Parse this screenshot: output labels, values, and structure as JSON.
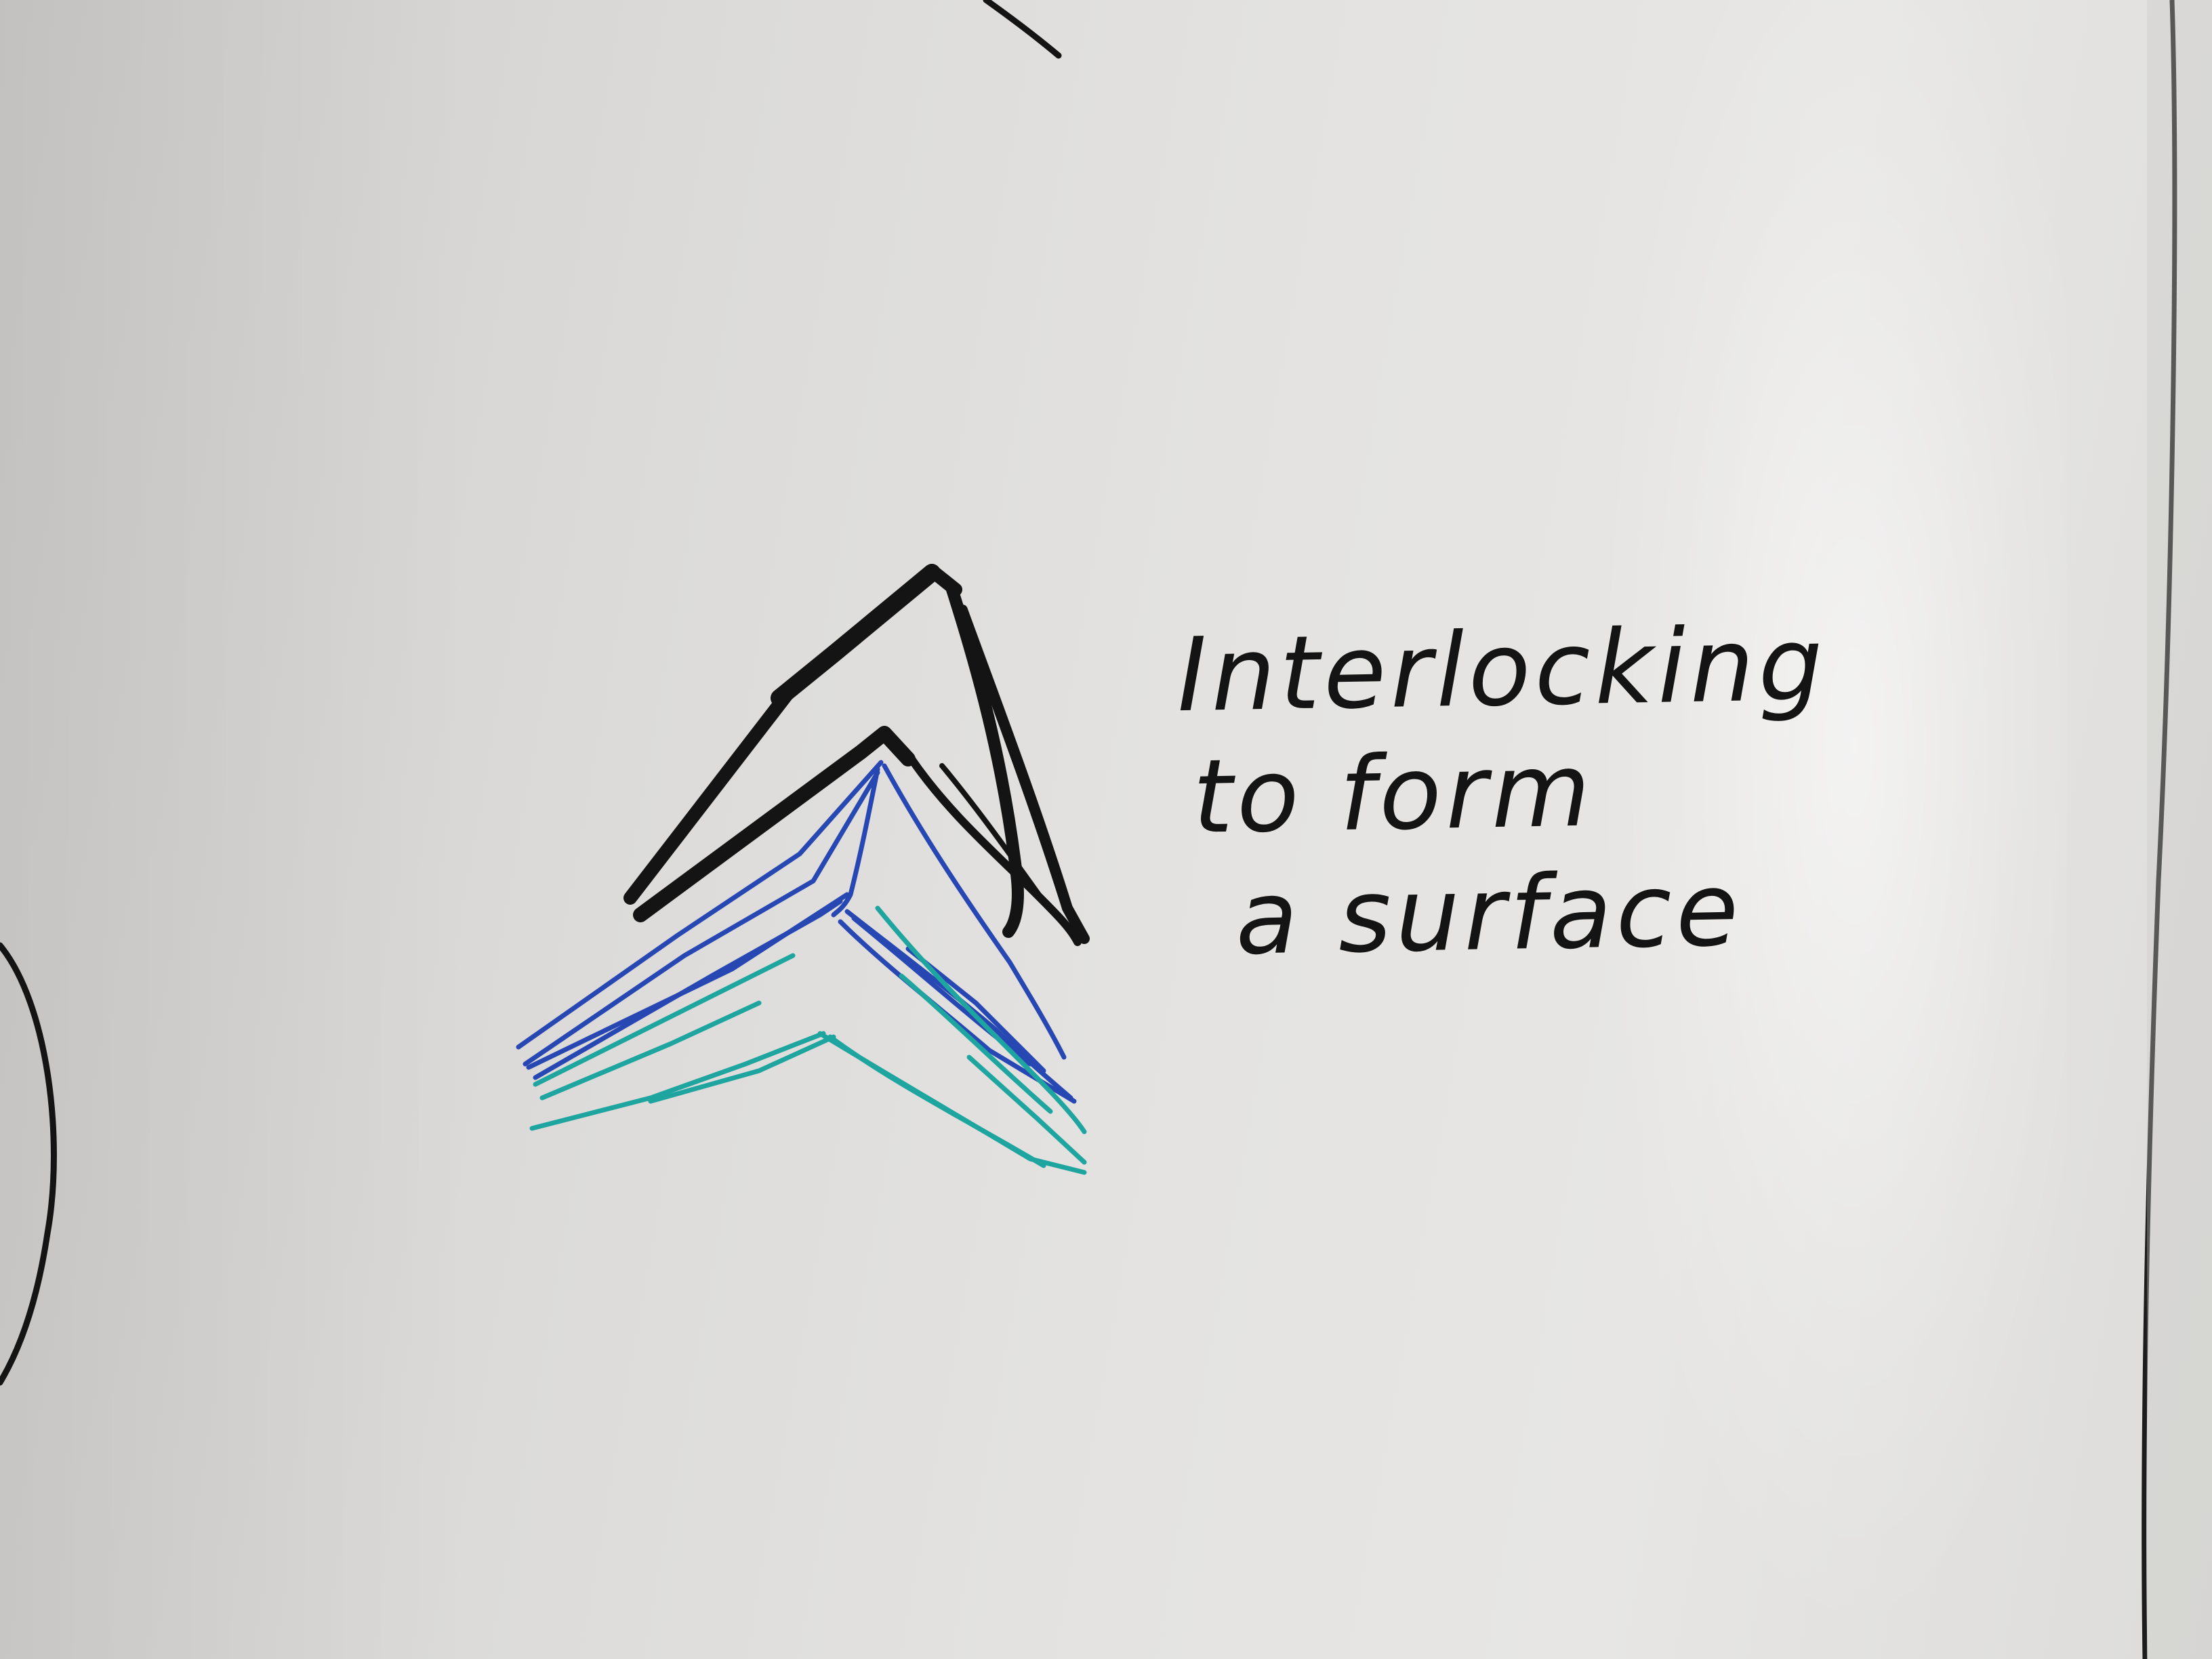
{
  "whiteboard": {
    "note_lines": [
      "Interlocking",
      "to form",
      "a surface"
    ]
  },
  "colors": {
    "board": "#e2e1df",
    "black_marker": "#141414",
    "blue_marker": "#2747b3",
    "teal_marker": "#1fa5a0"
  },
  "sketch": {
    "subject": "interlocking chevron layers",
    "layers": [
      "black-chevron",
      "blue-chevron",
      "teal-chevron"
    ]
  }
}
